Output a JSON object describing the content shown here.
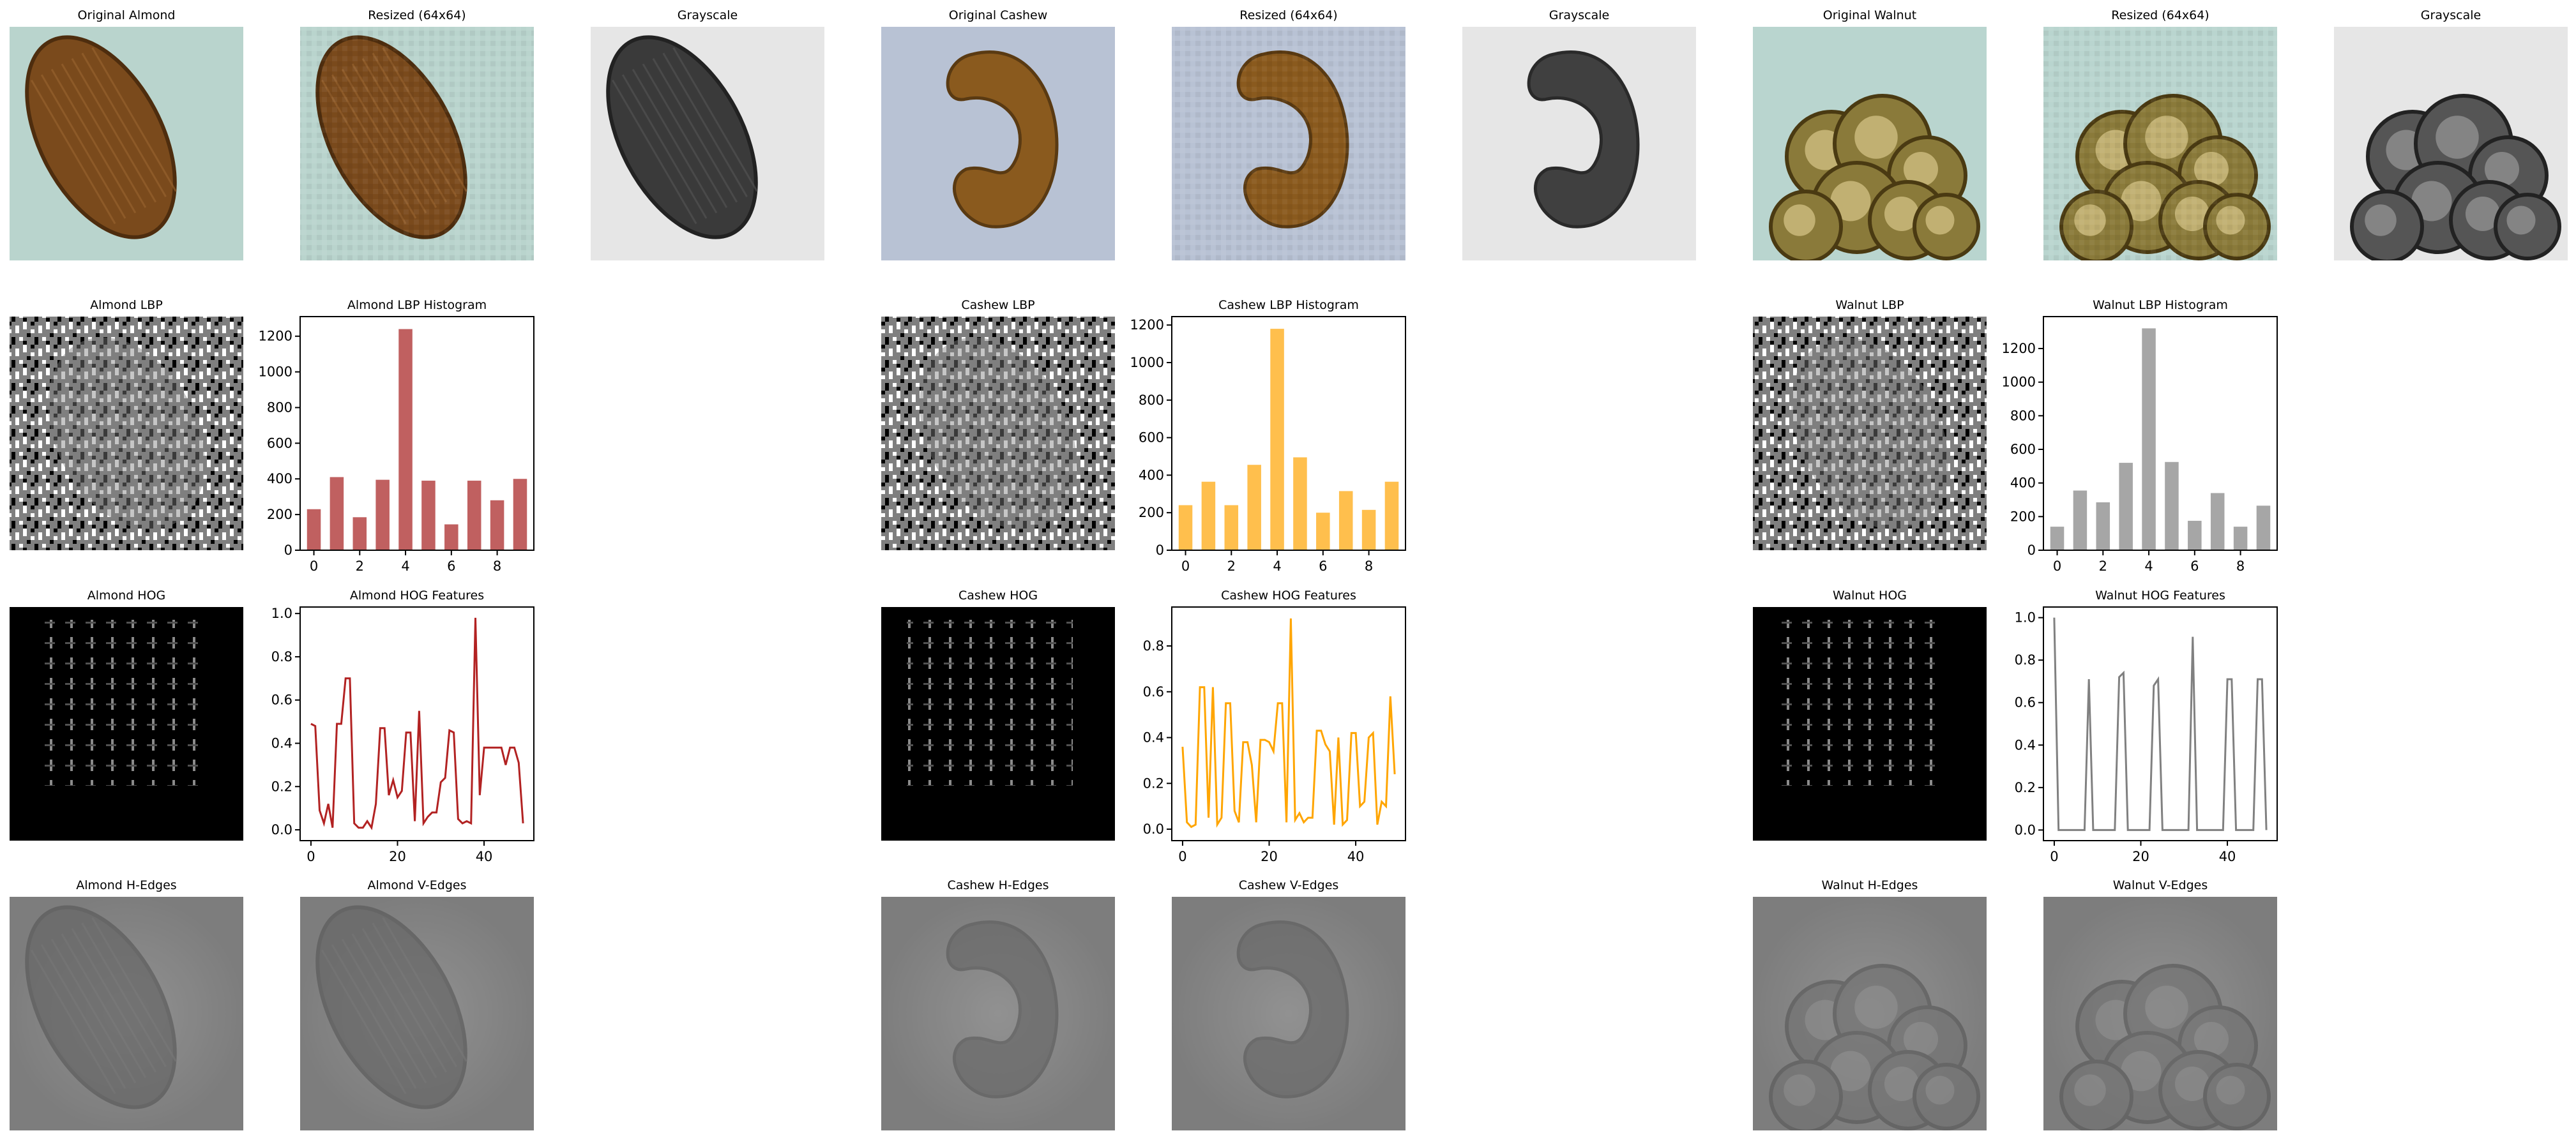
{
  "figure": {
    "panels": [
      {
        "id": "almond-original",
        "kind": "image",
        "title": "Original Almond",
        "image": "photo-almond"
      },
      {
        "id": "almond-resized",
        "kind": "image",
        "title": "Resized (64x64)",
        "image": "photo-almond-pixelated"
      },
      {
        "id": "almond-gray",
        "kind": "image",
        "title": "Grayscale",
        "image": "gray-almond"
      },
      {
        "id": "cashew-original",
        "kind": "image",
        "title": "Original Cashew",
        "image": "photo-cashew"
      },
      {
        "id": "cashew-resized",
        "kind": "image",
        "title": "Resized (64x64)",
        "image": "photo-cashew-pixelated"
      },
      {
        "id": "cashew-gray",
        "kind": "image",
        "title": "Grayscale",
        "image": "gray-cashew"
      },
      {
        "id": "walnut-original",
        "kind": "image",
        "title": "Original Walnut",
        "image": "photo-walnut"
      },
      {
        "id": "walnut-resized",
        "kind": "image",
        "title": "Resized (64x64)",
        "image": "photo-walnut-pixelated"
      },
      {
        "id": "walnut-gray",
        "kind": "image",
        "title": "Grayscale",
        "image": "gray-walnut"
      },
      {
        "id": "almond-lbp",
        "kind": "image",
        "title": "Almond LBP",
        "image": "lbp-pattern"
      },
      {
        "id": "cashew-lbp",
        "kind": "image",
        "title": "Cashew LBP",
        "image": "lbp-pattern"
      },
      {
        "id": "walnut-lbp",
        "kind": "image",
        "title": "Walnut LBP",
        "image": "lbp-pattern"
      },
      {
        "id": "almond-hog",
        "kind": "image",
        "title": "Almond HOG",
        "image": "hog-cells"
      },
      {
        "id": "cashew-hog",
        "kind": "image",
        "title": "Cashew HOG",
        "image": "hog-cells"
      },
      {
        "id": "walnut-hog",
        "kind": "image",
        "title": "Walnut HOG",
        "image": "hog-cells"
      },
      {
        "id": "almond-hedges",
        "kind": "image",
        "title": "Almond H-Edges",
        "image": "edge-map"
      },
      {
        "id": "almond-vedges",
        "kind": "image",
        "title": "Almond V-Edges",
        "image": "edge-map"
      },
      {
        "id": "cashew-hedges",
        "kind": "image",
        "title": "Cashew H-Edges",
        "image": "edge-map"
      },
      {
        "id": "cashew-vedges",
        "kind": "image",
        "title": "Cashew V-Edges",
        "image": "edge-map"
      },
      {
        "id": "walnut-hedges",
        "kind": "image",
        "title": "Walnut H-Edges",
        "image": "edge-map"
      },
      {
        "id": "walnut-vedges",
        "kind": "image",
        "title": "Walnut V-Edges",
        "image": "edge-map"
      }
    ],
    "colors": {
      "almond": "#b22222",
      "cashew": "#ffa500",
      "walnut": "#808080"
    }
  },
  "chart_data": [
    {
      "id": "almond-lbp-hist",
      "type": "bar",
      "title": "Almond LBP Histogram",
      "categories": [
        0,
        1,
        2,
        3,
        4,
        5,
        6,
        7,
        8,
        9
      ],
      "values": [
        230,
        410,
        185,
        395,
        1240,
        390,
        145,
        390,
        280,
        400
      ],
      "xticks": [
        "0",
        "2",
        "4",
        "6",
        "8"
      ],
      "yticks": [
        "0",
        "200",
        "400",
        "600",
        "800",
        "1000",
        "1200"
      ],
      "ylim": [
        0,
        1310
      ],
      "color": "#c06060",
      "xlabel": "",
      "ylabel": ""
    },
    {
      "id": "cashew-lbp-hist",
      "type": "bar",
      "title": "Cashew LBP Histogram",
      "categories": [
        0,
        1,
        2,
        3,
        4,
        5,
        6,
        7,
        8,
        9
      ],
      "values": [
        240,
        365,
        240,
        455,
        1180,
        495,
        200,
        315,
        215,
        365
      ],
      "xticks": [
        "0",
        "2",
        "4",
        "6",
        "8"
      ],
      "yticks": [
        "0",
        "200",
        "400",
        "600",
        "800",
        "1000",
        "1200"
      ],
      "ylim": [
        0,
        1245
      ],
      "color": "#ffbf4d",
      "xlabel": "",
      "ylabel": ""
    },
    {
      "id": "walnut-lbp-hist",
      "type": "bar",
      "title": "Walnut LBP Histogram",
      "categories": [
        0,
        1,
        2,
        3,
        4,
        5,
        6,
        7,
        8,
        9
      ],
      "values": [
        140,
        355,
        285,
        520,
        1320,
        525,
        175,
        340,
        140,
        265
      ],
      "xticks": [
        "0",
        "2",
        "4",
        "6",
        "8"
      ],
      "yticks": [
        "0",
        "200",
        "400",
        "600",
        "800",
        "1000",
        "1200"
      ],
      "ylim": [
        0,
        1390
      ],
      "color": "#a6a6a6",
      "xlabel": "",
      "ylabel": ""
    },
    {
      "id": "almond-hog-features",
      "type": "line",
      "title": "Almond HOG Features",
      "x": [
        0,
        1,
        2,
        3,
        4,
        5,
        6,
        7,
        8,
        9,
        10,
        11,
        12,
        13,
        14,
        15,
        16,
        17,
        18,
        19,
        20,
        21,
        22,
        23,
        24,
        25,
        26,
        27,
        28,
        29,
        30,
        31,
        32,
        33,
        34,
        35,
        36,
        37,
        38,
        39,
        40,
        41,
        42,
        43,
        44,
        45,
        46,
        47,
        48,
        49
      ],
      "values": [
        0.49,
        0.48,
        0.09,
        0.03,
        0.12,
        0.01,
        0.49,
        0.49,
        0.7,
        0.7,
        0.03,
        0.01,
        0.01,
        0.04,
        0.01,
        0.12,
        0.47,
        0.47,
        0.16,
        0.23,
        0.15,
        0.18,
        0.45,
        0.45,
        0.04,
        0.55,
        0.03,
        0.06,
        0.08,
        0.08,
        0.22,
        0.24,
        0.46,
        0.45,
        0.05,
        0.03,
        0.04,
        0.03,
        0.98,
        0.16,
        0.38,
        0.38,
        0.38,
        0.38,
        0.38,
        0.3,
        0.38,
        0.38,
        0.31,
        0.03
      ],
      "xticks": [
        "0",
        "20",
        "40"
      ],
      "yticks": [
        "0.0",
        "0.2",
        "0.4",
        "0.6",
        "0.8",
        "1.0"
      ],
      "xlim": [
        -2.5,
        51.5
      ],
      "ylim": [
        -0.05,
        1.03
      ],
      "color": "#b22222",
      "xlabel": "",
      "ylabel": ""
    },
    {
      "id": "cashew-hog-features",
      "type": "line",
      "title": "Cashew HOG Features",
      "x": [
        0,
        1,
        2,
        3,
        4,
        5,
        6,
        7,
        8,
        9,
        10,
        11,
        12,
        13,
        14,
        15,
        16,
        17,
        18,
        19,
        20,
        21,
        22,
        23,
        24,
        25,
        26,
        27,
        28,
        29,
        30,
        31,
        32,
        33,
        34,
        35,
        36,
        37,
        38,
        39,
        40,
        41,
        42,
        43,
        44,
        45,
        46,
        47,
        48,
        49
      ],
      "values": [
        0.36,
        0.03,
        0.01,
        0.02,
        0.62,
        0.62,
        0.05,
        0.62,
        0.02,
        0.05,
        0.55,
        0.55,
        0.08,
        0.03,
        0.38,
        0.38,
        0.28,
        0.03,
        0.39,
        0.39,
        0.38,
        0.34,
        0.55,
        0.55,
        0.03,
        0.92,
        0.04,
        0.07,
        0.03,
        0.05,
        0.05,
        0.43,
        0.43,
        0.37,
        0.34,
        0.02,
        0.4,
        0.02,
        0.04,
        0.42,
        0.42,
        0.1,
        0.12,
        0.4,
        0.42,
        0.02,
        0.12,
        0.1,
        0.58,
        0.24
      ],
      "xticks": [
        "0",
        "20",
        "40"
      ],
      "yticks": [
        "0.0",
        "0.2",
        "0.4",
        "0.6",
        "0.8"
      ],
      "xlim": [
        -2.5,
        51.5
      ],
      "ylim": [
        -0.05,
        0.97
      ],
      "color": "#ffa500",
      "xlabel": "",
      "ylabel": ""
    },
    {
      "id": "walnut-hog-features",
      "type": "line",
      "title": "Walnut HOG Features",
      "x": [
        0,
        1,
        2,
        3,
        4,
        5,
        6,
        7,
        8,
        9,
        10,
        11,
        12,
        13,
        14,
        15,
        16,
        17,
        18,
        19,
        20,
        21,
        22,
        23,
        24,
        25,
        26,
        27,
        28,
        29,
        30,
        31,
        32,
        33,
        34,
        35,
        36,
        37,
        38,
        39,
        40,
        41,
        42,
        43,
        44,
        45,
        46,
        47,
        48,
        49
      ],
      "values": [
        1.0,
        0.0,
        0.0,
        0.0,
        0.0,
        0.0,
        0.0,
        0.0,
        0.71,
        0.0,
        0.0,
        0.0,
        0.0,
        0.0,
        0.0,
        0.72,
        0.74,
        0.0,
        0.0,
        0.0,
        0.0,
        0.0,
        0.0,
        0.68,
        0.71,
        0.0,
        0.0,
        0.0,
        0.0,
        0.0,
        0.0,
        0.0,
        0.91,
        0.0,
        0.0,
        0.0,
        0.0,
        0.0,
        0.0,
        0.0,
        0.71,
        0.71,
        0.0,
        0.0,
        0.0,
        0.0,
        0.0,
        0.71,
        0.71,
        0.0
      ],
      "xticks": [
        "0",
        "20",
        "40"
      ],
      "yticks": [
        "0.0",
        "0.2",
        "0.4",
        "0.6",
        "0.8",
        "1.0"
      ],
      "xlim": [
        -2.5,
        51.5
      ],
      "ylim": [
        -0.05,
        1.05
      ],
      "color": "#808080",
      "xlabel": "",
      "ylabel": ""
    }
  ]
}
